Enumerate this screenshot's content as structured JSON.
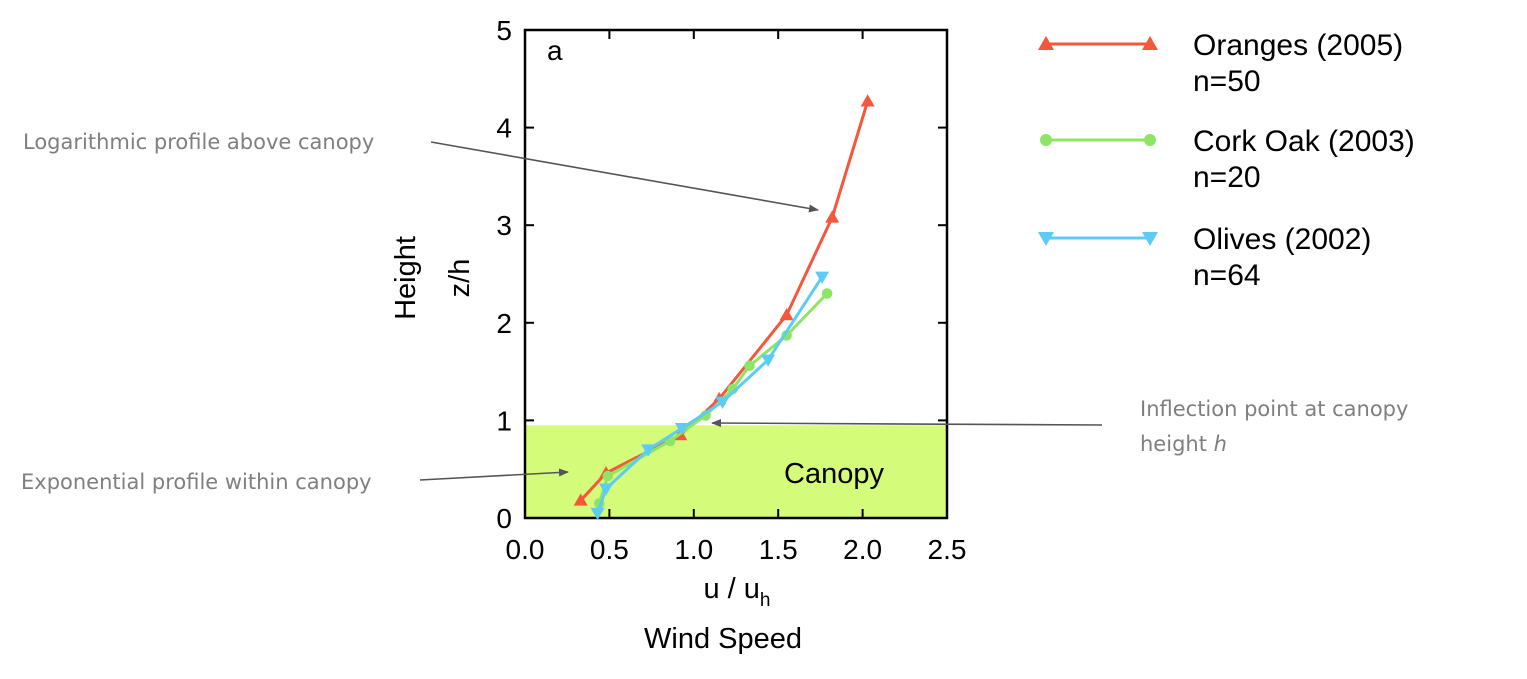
{
  "chart_data": {
    "type": "line",
    "panel_label": "a",
    "xlabel_main": "u / u",
    "xlabel_sub": "h",
    "xlabel_caption": "Wind Speed",
    "ylabel_main": "z/h",
    "ylabel_caption": "Height",
    "xlim": [
      0,
      2.5
    ],
    "ylim": [
      0,
      5
    ],
    "x_ticks": [
      "0.0",
      "0.5",
      "1.0",
      "1.5",
      "2.0",
      "2.5"
    ],
    "y_ticks": [
      "0",
      "1",
      "2",
      "3",
      "4",
      "5"
    ],
    "canopy": {
      "label": "Canopy",
      "color": "#d4fb79",
      "z_top": 0.95
    },
    "series": [
      {
        "name": "Oranges (2005)",
        "n_label": "n=50",
        "color": "#f4573b",
        "marker": "triangle-up",
        "x": [
          0.33,
          0.48,
          0.92,
          1.15,
          1.55,
          1.82,
          2.03
        ],
        "y": [
          0.18,
          0.46,
          0.85,
          1.22,
          2.08,
          3.08,
          4.27
        ]
      },
      {
        "name": "Cork Oak (2003)",
        "n_label": "n=20",
        "color": "#8ce563",
        "marker": "circle",
        "x": [
          0.44,
          0.49,
          0.86,
          1.07,
          1.23,
          1.33,
          1.55,
          1.79
        ],
        "y": [
          0.15,
          0.43,
          0.79,
          1.05,
          1.32,
          1.56,
          1.87,
          2.3
        ]
      },
      {
        "name": "Olives (2002)",
        "n_label": "n=64",
        "color": "#5ccbf5",
        "marker": "triangle-down",
        "x": [
          0.43,
          0.48,
          0.73,
          0.93,
          1.17,
          1.44,
          1.76
        ],
        "y": [
          0.05,
          0.3,
          0.7,
          0.92,
          1.19,
          1.62,
          2.47
        ]
      }
    ],
    "legend_position": "right"
  },
  "annotations": {
    "log_profile": "Logarithmic profile above canopy",
    "exp_profile": "Exponential profile within canopy",
    "inflection_line1": "Inflection point at canopy",
    "inflection_line2": "height ",
    "inflection_italic": "h"
  }
}
